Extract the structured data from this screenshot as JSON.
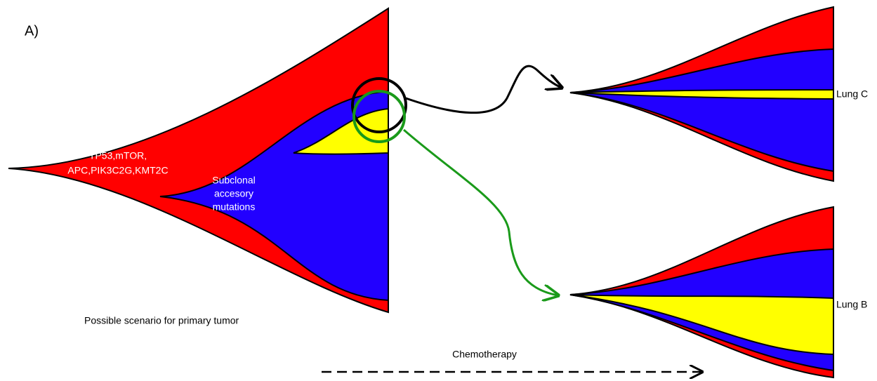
{
  "panel_label": "A)",
  "primary_tumor": {
    "founder_mutations": [
      "TP53,mTOR,",
      "APC,PIK3C2G,KMT2C"
    ],
    "subclone_label": [
      "Subclonal",
      "accesory",
      "mutations"
    ],
    "caption": "Possible scenario for primary tumor"
  },
  "metastases": [
    {
      "label": "Lung C"
    },
    {
      "label": "Lung B"
    }
  ],
  "treatment": "Chemotherapy"
}
